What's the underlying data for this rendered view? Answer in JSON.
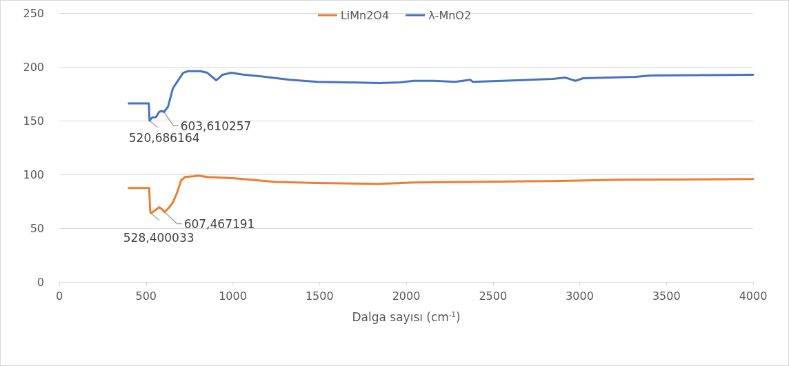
{
  "chart_data": {
    "type": "line",
    "xlabel": "Dalga sayısı (cm$^{-1}$)",
    "xlim": [
      0,
      4000
    ],
    "xticks": [
      0,
      500,
      1000,
      1500,
      2000,
      2500,
      3000,
      3500,
      4000
    ],
    "ylim": [
      0,
      250
    ],
    "yticks": [
      0,
      50,
      100,
      150,
      200,
      250
    ],
    "grid": "y",
    "legend": "top",
    "marker": "none",
    "line_style": "solid",
    "series": [
      {
        "name": "LiMn2O4",
        "color": "#ed7d31",
        "x": [
          400,
          518,
          524,
          528,
          556,
          575,
          591,
          607,
          631,
          655,
          679,
          702,
          726,
          774,
          802,
          853,
          1012,
          1250,
          1488,
          1845,
          2044,
          2361,
          2837,
          3234,
          4000
        ],
        "values": [
          87.4,
          87.4,
          65.7,
          63.8,
          67,
          69.5,
          67.6,
          65,
          68.9,
          74,
          83,
          94.4,
          97.6,
          98.2,
          98.9,
          97.6,
          96.3,
          93,
          92,
          91.2,
          92.5,
          93,
          93.8,
          95,
          95.7
        ]
      },
      {
        "name": "λ-MnO2",
        "color": "#4472c4",
        "x": [
          400,
          516,
          520,
          536,
          556,
          575,
          591,
          603,
          627,
          655,
          679,
          714,
          742,
          813,
          853,
          905,
          940,
          992,
          1052,
          1171,
          1329,
          1488,
          1647,
          1845,
          1964,
          2044,
          2163,
          2282,
          2369,
          2385,
          2845,
          2917,
          2976,
          3020,
          3321,
          3413,
          4000
        ],
        "values": [
          166,
          166,
          150,
          153,
          153,
          158,
          159,
          158,
          163,
          180,
          186,
          194.5,
          196,
          196,
          194.5,
          187.5,
          192.6,
          194.5,
          193,
          191,
          188,
          186,
          185.6,
          185,
          185.6,
          187,
          187,
          186,
          188,
          186,
          188.8,
          190,
          187,
          189.4,
          190.7,
          192,
          192.6
        ]
      }
    ],
    "annotations": [
      {
        "text": "520,686164",
        "x": 520,
        "y": 150
      },
      {
        "text": "603,610257",
        "x": 603,
        "y": 158
      },
      {
        "text": "528,400033",
        "x": 528,
        "y": 63.8
      },
      {
        "text": "607,467191",
        "x": 607,
        "y": 65
      }
    ]
  }
}
